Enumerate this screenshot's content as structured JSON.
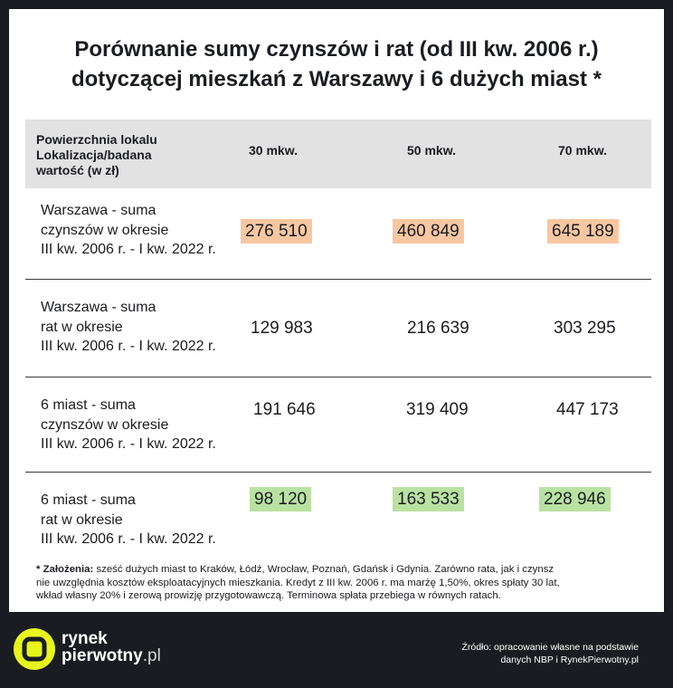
{
  "title": {
    "line1": "Porównanie sumy czynszów i rat (od III kw. 2006 r.)",
    "line2": "dotyczącej mieszkań z Warszawy i 6 dużych miast *"
  },
  "table": {
    "header": {
      "label_lines": [
        "Powierzchnia lokalu",
        "Lokalizacja/badana",
        "wartość (w zł)"
      ],
      "columns": [
        "30 mkw.",
        "50 mkw.",
        "70 mkw."
      ]
    },
    "rows": [
      {
        "label_lines": [
          "Warszawa - suma",
          "czynszów w okresie",
          "III kw. 2006 r. - I kw. 2022 r."
        ],
        "values": [
          "276 510",
          "460 849",
          "645 189"
        ],
        "highlight": "#f8c7a1"
      },
      {
        "label_lines": [
          "Warszawa - suma",
          "rat w okresie",
          "III kw. 2006 r. - I kw. 2022 r."
        ],
        "values": [
          "129 983",
          "216 639",
          "303 295"
        ],
        "highlight": ""
      },
      {
        "label_lines": [
          "6 miast - suma",
          "czynszów w okresie",
          "III kw. 2006 r. - I kw. 2022 r."
        ],
        "values": [
          "191 646",
          "319 409",
          "447 173"
        ],
        "highlight": ""
      },
      {
        "label_lines": [
          "6 miast - suma",
          "rat w okresie",
          "III kw. 2006 r. - I kw. 2022 r."
        ],
        "values": [
          "98 120",
          "163 533",
          "228 946"
        ],
        "highlight": "#b9e2a2"
      }
    ]
  },
  "footnote": {
    "bold": "* Założenia:",
    "line1_rest": " sześć dużych miast to Kraków, Łódź, Wrocław, Poznań, Gdańsk i Gdynia. Zarówno rata, jak i czynsz",
    "line2": "nie uwzględnia kosztów eksploatacyjnych mieszkania. Kredyt z III kw. 2006 r. ma marżę 1,50%, okres spłaty 30 lat,",
    "line3": "wkład własny 20% i zerową prowizję przygotowawczą. Terminowa spłata przebiega w równych ratach."
  },
  "brand": {
    "line1": "rynek",
    "line2_main": "pierwotny",
    "line2_suffix": ".pl",
    "logo_color": "#e6f51c",
    "icon": "rynek-pierwotny-logo-icon"
  },
  "source": {
    "line1": "Źródło: opracowanie własne na podstawie",
    "line2": "danych NBP i RynekPierwotny.pl"
  },
  "colors": {
    "background": "#1b1c21",
    "header_bg": "#e2e2e2",
    "highlight_orange": "#f8c7a1",
    "highlight_green": "#b9e2a2"
  }
}
